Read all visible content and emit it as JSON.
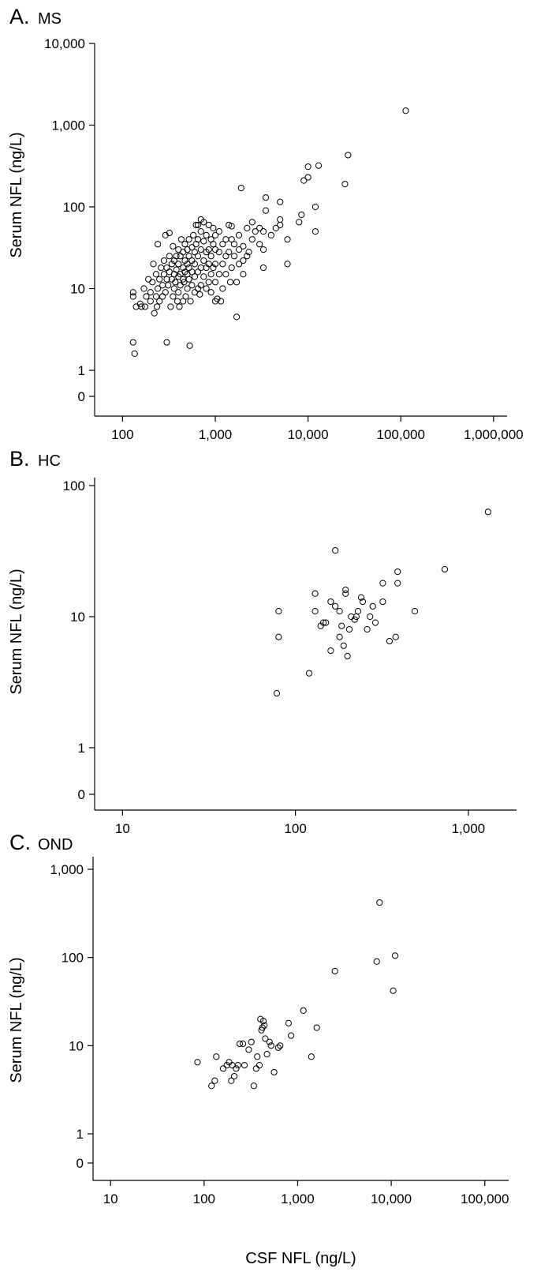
{
  "chart_data": [
    {
      "type": "scatter",
      "panel": "A.",
      "title": "MS",
      "xlabel": "",
      "ylabel": "Serum NFL (ng/L)",
      "xscale": "log",
      "yscale": "log",
      "grid": false,
      "xlim": [
        50,
        1400000
      ],
      "xticks": [
        100,
        1000,
        10000,
        100000,
        1000000
      ],
      "xtick_labels": [
        "100",
        "1,000",
        "10,000",
        "100,000",
        "1,000,000"
      ],
      "yticks": [
        0,
        1,
        10,
        100,
        1000,
        10000
      ],
      "ytick_labels": [
        "0",
        "1",
        "10",
        "100",
        "1,000",
        "10,000"
      ],
      "points": [
        [
          113000,
          1500
        ],
        [
          27000,
          430
        ],
        [
          25000,
          190
        ],
        [
          13000,
          320
        ],
        [
          10000,
          310
        ],
        [
          10000,
          230
        ],
        [
          9000,
          210
        ],
        [
          12000,
          100
        ],
        [
          12000,
          50
        ],
        [
          8500,
          80
        ],
        [
          8000,
          65
        ],
        [
          6000,
          20
        ],
        [
          6000,
          40
        ],
        [
          5000,
          115
        ],
        [
          5000,
          70
        ],
        [
          5000,
          60
        ],
        [
          4500,
          55
        ],
        [
          4000,
          45
        ],
        [
          3500,
          130
        ],
        [
          3500,
          90
        ],
        [
          3300,
          50
        ],
        [
          3300,
          30
        ],
        [
          3300,
          18
        ],
        [
          3000,
          55
        ],
        [
          3000,
          35
        ],
        [
          2700,
          50
        ],
        [
          2500,
          65
        ],
        [
          2500,
          40
        ],
        [
          2300,
          28
        ],
        [
          2200,
          55
        ],
        [
          2200,
          25
        ],
        [
          2000,
          33
        ],
        [
          2000,
          22
        ],
        [
          2000,
          15
        ],
        [
          1900,
          170
        ],
        [
          1800,
          45
        ],
        [
          1800,
          30
        ],
        [
          1800,
          20
        ],
        [
          1700,
          12
        ],
        [
          1700,
          4.5
        ],
        [
          1600,
          35
        ],
        [
          1600,
          25
        ],
        [
          1500,
          58
        ],
        [
          1500,
          40
        ],
        [
          1500,
          18
        ],
        [
          1450,
          12
        ],
        [
          1400,
          28
        ],
        [
          1400,
          60
        ],
        [
          1300,
          40
        ],
        [
          1300,
          25
        ],
        [
          1300,
          15
        ],
        [
          1200,
          35
        ],
        [
          1200,
          20
        ],
        [
          1200,
          10
        ],
        [
          1150,
          7
        ],
        [
          1100,
          50
        ],
        [
          1100,
          28
        ],
        [
          1100,
          15
        ],
        [
          1050,
          7.5
        ],
        [
          1000,
          45
        ],
        [
          1000,
          30
        ],
        [
          1000,
          20
        ],
        [
          1000,
          12
        ],
        [
          1000,
          7
        ],
        [
          950,
          55
        ],
        [
          950,
          35
        ],
        [
          950,
          18
        ],
        [
          900,
          40
        ],
        [
          900,
          25
        ],
        [
          900,
          15
        ],
        [
          900,
          9
        ],
        [
          850,
          60
        ],
        [
          850,
          30
        ],
        [
          850,
          20
        ],
        [
          850,
          12
        ],
        [
          800,
          45
        ],
        [
          800,
          28
        ],
        [
          800,
          18
        ],
        [
          800,
          10
        ],
        [
          750,
          65
        ],
        [
          750,
          38
        ],
        [
          750,
          22
        ],
        [
          750,
          14
        ],
        [
          700,
          70
        ],
        [
          700,
          50
        ],
        [
          700,
          30
        ],
        [
          700,
          18
        ],
        [
          700,
          11
        ],
        [
          680,
          8.5
        ],
        [
          650,
          60
        ],
        [
          650,
          40
        ],
        [
          650,
          25
        ],
        [
          650,
          16
        ],
        [
          650,
          10
        ],
        [
          620,
          60
        ],
        [
          620,
          35
        ],
        [
          600,
          28
        ],
        [
          600,
          20
        ],
        [
          600,
          14
        ],
        [
          600,
          9
        ],
        [
          580,
          45
        ],
        [
          560,
          32
        ],
        [
          560,
          22
        ],
        [
          560,
          16
        ],
        [
          560,
          11
        ],
        [
          540,
          7
        ],
        [
          530,
          2
        ],
        [
          520,
          40
        ],
        [
          520,
          25
        ],
        [
          520,
          18
        ],
        [
          520,
          13
        ],
        [
          500,
          30
        ],
        [
          500,
          20
        ],
        [
          500,
          15
        ],
        [
          500,
          10
        ],
        [
          480,
          8
        ],
        [
          470,
          35
        ],
        [
          470,
          22
        ],
        [
          470,
          16
        ],
        [
          460,
          12
        ],
        [
          450,
          28
        ],
        [
          450,
          18
        ],
        [
          450,
          13
        ],
        [
          450,
          7
        ],
        [
          430,
          40
        ],
        [
          420,
          25
        ],
        [
          420,
          15
        ],
        [
          420,
          11
        ],
        [
          410,
          6
        ],
        [
          400,
          30
        ],
        [
          400,
          20
        ],
        [
          400,
          14
        ],
        [
          400,
          9
        ],
        [
          390,
          7
        ],
        [
          380,
          25
        ],
        [
          380,
          17
        ],
        [
          370,
          12
        ],
        [
          360,
          22
        ],
        [
          360,
          15
        ],
        [
          360,
          10
        ],
        [
          350,
          33
        ],
        [
          350,
          8
        ],
        [
          340,
          20
        ],
        [
          340,
          13
        ],
        [
          330,
          6
        ],
        [
          320,
          48
        ],
        [
          320,
          25
        ],
        [
          320,
          16
        ],
        [
          310,
          11
        ],
        [
          300,
          2.2
        ],
        [
          300,
          18
        ],
        [
          300,
          13
        ],
        [
          290,
          9
        ],
        [
          290,
          45
        ],
        [
          280,
          22
        ],
        [
          280,
          15
        ],
        [
          270,
          11
        ],
        [
          270,
          8
        ],
        [
          260,
          18
        ],
        [
          250,
          13
        ],
        [
          250,
          7
        ],
        [
          240,
          35
        ],
        [
          240,
          10
        ],
        [
          235,
          6
        ],
        [
          230,
          15
        ],
        [
          230,
          8
        ],
        [
          220,
          5
        ],
        [
          215,
          20
        ],
        [
          210,
          12
        ],
        [
          200,
          9
        ],
        [
          200,
          7
        ],
        [
          190,
          13
        ],
        [
          180,
          8
        ],
        [
          175,
          6
        ],
        [
          170,
          10
        ],
        [
          160,
          6
        ],
        [
          155,
          6.5
        ],
        [
          140,
          6
        ],
        [
          135,
          1.6
        ],
        [
          130,
          9
        ],
        [
          130,
          8
        ],
        [
          130,
          2.2
        ]
      ]
    },
    {
      "type": "scatter",
      "panel": "B.",
      "title": "HC",
      "xlabel": "",
      "ylabel": "Serum NFL (ng/L)",
      "xscale": "log",
      "yscale": "log",
      "grid": false,
      "xlim": [
        6.9,
        1900
      ],
      "xticks": [
        10,
        100,
        1000
      ],
      "xtick_labels": [
        "10",
        "100",
        "1,000"
      ],
      "yticks": [
        0,
        1,
        10,
        100
      ],
      "ytick_labels": [
        "0",
        "1",
        "10",
        "100"
      ],
      "points": [
        [
          1300,
          63
        ],
        [
          730,
          23
        ],
        [
          490,
          11
        ],
        [
          390,
          22
        ],
        [
          390,
          18
        ],
        [
          380,
          7
        ],
        [
          350,
          6.5
        ],
        [
          320,
          18
        ],
        [
          320,
          13
        ],
        [
          290,
          9
        ],
        [
          280,
          12
        ],
        [
          270,
          10
        ],
        [
          260,
          8
        ],
        [
          245,
          13
        ],
        [
          240,
          14
        ],
        [
          230,
          11
        ],
        [
          225,
          10
        ],
        [
          220,
          9.5
        ],
        [
          210,
          10
        ],
        [
          205,
          8
        ],
        [
          200,
          5
        ],
        [
          195,
          16
        ],
        [
          195,
          15
        ],
        [
          190,
          6
        ],
        [
          185,
          8.5
        ],
        [
          180,
          11
        ],
        [
          180,
          7
        ],
        [
          170,
          32
        ],
        [
          170,
          12
        ],
        [
          160,
          13
        ],
        [
          160,
          5.5
        ],
        [
          150,
          9
        ],
        [
          145,
          9
        ],
        [
          140,
          8.5
        ],
        [
          130,
          15
        ],
        [
          130,
          11
        ],
        [
          120,
          3.7
        ],
        [
          80,
          11
        ],
        [
          80,
          7
        ],
        [
          78,
          2.6
        ]
      ]
    },
    {
      "type": "scatter",
      "panel": "C.",
      "title": "OND",
      "xlabel": "CSF NFL (ng/L)",
      "ylabel": "Serum NFL (ng/L)",
      "xscale": "log",
      "yscale": "log",
      "grid": false,
      "xlim": [
        6.5,
        180000
      ],
      "xticks": [
        10,
        100,
        1000,
        10000,
        100000
      ],
      "xtick_labels": [
        "10",
        "100",
        "1,000",
        "10,000",
        "100,000"
      ],
      "yticks": [
        0,
        1,
        10,
        100,
        1000
      ],
      "ytick_labels": [
        "0",
        "1",
        "10",
        "100",
        "1,000"
      ],
      "points": [
        [
          7500,
          420
        ],
        [
          7000,
          90
        ],
        [
          11000,
          105
        ],
        [
          10500,
          42
        ],
        [
          2500,
          70
        ],
        [
          1600,
          16
        ],
        [
          1400,
          7.5
        ],
        [
          1150,
          25
        ],
        [
          850,
          13
        ],
        [
          800,
          18
        ],
        [
          650,
          10
        ],
        [
          620,
          9.5
        ],
        [
          560,
          5
        ],
        [
          520,
          10
        ],
        [
          500,
          11
        ],
        [
          470,
          8
        ],
        [
          450,
          12
        ],
        [
          440,
          17
        ],
        [
          430,
          19
        ],
        [
          420,
          16
        ],
        [
          410,
          15
        ],
        [
          400,
          20
        ],
        [
          390,
          6
        ],
        [
          370,
          7.5
        ],
        [
          360,
          5.5
        ],
        [
          340,
          3.5
        ],
        [
          320,
          11
        ],
        [
          300,
          9
        ],
        [
          270,
          6
        ],
        [
          260,
          10.5
        ],
        [
          240,
          10.5
        ],
        [
          230,
          6
        ],
        [
          220,
          5.5
        ],
        [
          210,
          4.5
        ],
        [
          200,
          6
        ],
        [
          195,
          4
        ],
        [
          185,
          6.5
        ],
        [
          175,
          6
        ],
        [
          160,
          5.5
        ],
        [
          135,
          7.5
        ],
        [
          130,
          4
        ],
        [
          120,
          3.5
        ],
        [
          85,
          6.5
        ]
      ]
    }
  ]
}
